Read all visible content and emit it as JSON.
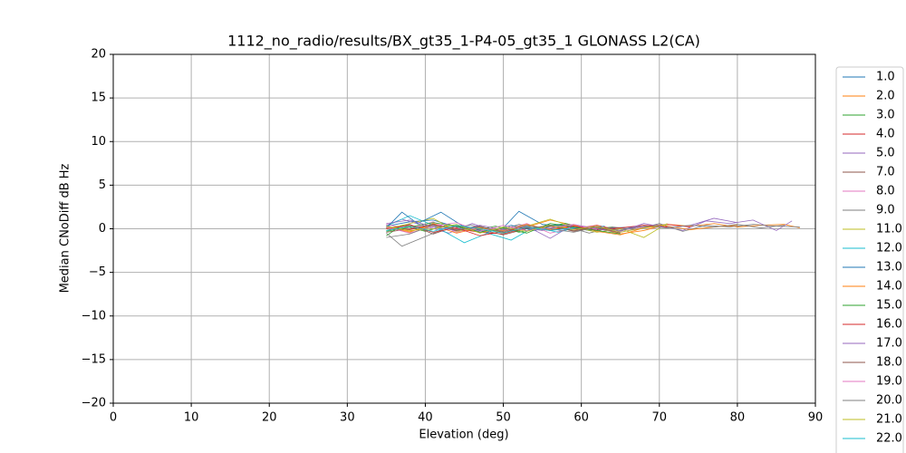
{
  "chart_data": {
    "type": "line",
    "title": "1112_no_radio/results/BX_gt35_1-P4-05_gt35_1 GLONASS L2(CA)",
    "xlabel": "Elevation (deg)",
    "ylabel": "Median CNoDiff dB Hz",
    "xlim": [
      0,
      90
    ],
    "ylim": [
      -20,
      20
    ],
    "xticks": [
      0,
      10,
      20,
      30,
      40,
      50,
      60,
      70,
      80,
      90
    ],
    "yticks": [
      {
        "value": -20,
        "label": "−20"
      },
      {
        "value": -15,
        "label": "−15"
      },
      {
        "value": -10,
        "label": "−10"
      },
      {
        "value": -5,
        "label": "−5"
      },
      0,
      5,
      10,
      15,
      20
    ],
    "grid": true,
    "legend": "outside right",
    "series": [
      {
        "name": "1.0",
        "color": "#1f77b4",
        "x": [
          35,
          38,
          41,
          44,
          47,
          50,
          52,
          55,
          58,
          61,
          64,
          67,
          70
        ],
        "values": [
          0.3,
          0.8,
          1.0,
          0.2,
          -0.3,
          0.1,
          2.0,
          0.5,
          0.3,
          -0.2,
          0.1,
          0.2,
          0.4
        ]
      },
      {
        "name": "2.0",
        "color": "#ff7f0e",
        "x": [
          35,
          38,
          41,
          44,
          47,
          50,
          53,
          56,
          59,
          62,
          65,
          68,
          71,
          74,
          77,
          80,
          83,
          86,
          88
        ],
        "values": [
          0.1,
          -0.4,
          0.6,
          -0.2,
          0.3,
          -0.5,
          0.2,
          1.0,
          0.4,
          0.1,
          -0.6,
          -0.2,
          0.5,
          0.3,
          0.6,
          0.2,
          0.4,
          0.5,
          0.1
        ]
      },
      {
        "name": "3.0",
        "color": "#2ca02c",
        "x": [
          35,
          37,
          40,
          43,
          46,
          49,
          52,
          55,
          58,
          61,
          64
        ],
        "values": [
          -0.8,
          0.4,
          -0.3,
          0.5,
          -0.2,
          0.3,
          -0.4,
          0.2,
          0.6,
          -0.1,
          0.2
        ]
      },
      {
        "name": "4.0",
        "color": "#d62728",
        "x": [
          35,
          38,
          41,
          44,
          47,
          50,
          53,
          56,
          59,
          62,
          65,
          68,
          71,
          74
        ],
        "values": [
          0.2,
          -0.1,
          0.5,
          0.0,
          -0.4,
          -0.6,
          0.1,
          0.3,
          0.0,
          0.4,
          -0.2,
          0.3,
          0.5,
          0.2
        ]
      },
      {
        "name": "5.0",
        "color": "#9467bd",
        "x": [
          35,
          37,
          40,
          43,
          46,
          49,
          52,
          55,
          58,
          61,
          64,
          67,
          70,
          73,
          76,
          79,
          82,
          85,
          87
        ],
        "values": [
          0.4,
          1.1,
          0.3,
          -0.5,
          0.6,
          -0.3,
          0.2,
          -0.2,
          0.5,
          0.1,
          -0.3,
          0.2,
          0.4,
          -0.2,
          0.9,
          0.6,
          1.0,
          -0.2,
          0.9
        ]
      },
      {
        "name": "7.0",
        "color": "#8c564b",
        "x": [
          35,
          38,
          41,
          44,
          47,
          50,
          53,
          56,
          59,
          62
        ],
        "values": [
          -0.2,
          0.5,
          -0.6,
          0.3,
          -0.1,
          -0.7,
          0.0,
          0.4,
          -0.3,
          0.2
        ]
      },
      {
        "name": "8.0",
        "color": "#e377c2",
        "x": [
          35,
          38,
          41,
          44,
          47,
          50,
          53,
          56,
          59,
          62,
          65,
          68
        ],
        "values": [
          0.5,
          0.0,
          0.8,
          -0.4,
          0.2,
          -0.2,
          0.6,
          -0.5,
          0.1,
          0.3,
          -0.4,
          0.2
        ]
      },
      {
        "name": "9.0",
        "color": "#7f7f7f",
        "x": [
          35,
          37,
          40,
          43,
          46,
          49,
          52,
          55,
          58,
          61,
          64,
          67,
          70,
          73,
          76,
          79,
          82,
          85,
          88
        ],
        "values": [
          -0.5,
          -2.0,
          -0.9,
          0.2,
          0.4,
          -0.3,
          0.5,
          -0.1,
          0.3,
          -0.5,
          0.2,
          -0.1,
          0.6,
          -0.3,
          0.4,
          0.2,
          0.5,
          0.3,
          0.2
        ]
      },
      {
        "name": "11.0",
        "color": "#bcbd22",
        "x": [
          35,
          38,
          41,
          44,
          47,
          50,
          53,
          56,
          59,
          62,
          65,
          68,
          71
        ],
        "values": [
          0.0,
          0.6,
          1.2,
          -0.3,
          0.2,
          -0.5,
          0.3,
          1.1,
          0.2,
          -0.4,
          0.0,
          -1.0,
          0.6
        ]
      },
      {
        "name": "12.0",
        "color": "#17becf",
        "x": [
          35,
          38,
          41,
          43,
          45,
          48,
          51,
          54,
          57,
          60
        ],
        "values": [
          0.3,
          1.5,
          0.4,
          -0.6,
          -1.6,
          -0.5,
          -1.3,
          0.2,
          -0.4,
          0.3
        ]
      },
      {
        "name": "13.0",
        "color": "#1f77b4",
        "x": [
          35,
          37,
          39,
          42,
          45,
          48,
          51,
          54,
          57,
          60,
          63
        ],
        "values": [
          0.1,
          1.9,
          0.6,
          1.9,
          0.2,
          -0.4,
          0.4,
          -0.2,
          0.5,
          0.0,
          0.3
        ]
      },
      {
        "name": "14.0",
        "color": "#ff7f0e",
        "x": [
          35,
          38,
          41,
          44,
          47,
          50,
          53,
          56,
          59,
          62,
          65,
          68,
          71,
          74,
          77,
          80
        ],
        "values": [
          0.2,
          -0.3,
          0.4,
          -0.5,
          0.1,
          -0.2,
          0.5,
          -0.1,
          0.4,
          -0.3,
          -0.7,
          0.1,
          0.3,
          -0.1,
          0.2,
          0.4
        ]
      },
      {
        "name": "15.0",
        "color": "#2ca02c",
        "x": [
          35,
          38,
          41,
          44,
          47,
          50,
          53,
          56,
          59,
          62,
          65
        ],
        "values": [
          -0.3,
          0.2,
          0.7,
          0.3,
          -0.4,
          0.1,
          -0.5,
          0.6,
          0.2,
          -0.2,
          -0.6
        ]
      },
      {
        "name": "16.0",
        "color": "#d62728",
        "x": [
          35,
          38,
          41,
          44,
          47,
          50,
          53,
          56,
          59,
          62,
          65,
          68,
          71
        ],
        "values": [
          0.0,
          0.4,
          -0.4,
          0.1,
          -0.8,
          -0.3,
          0.2,
          -0.2,
          0.3,
          -0.1,
          0.1,
          0.4,
          0.2
        ]
      },
      {
        "name": "17.0",
        "color": "#9467bd",
        "x": [
          35,
          38,
          41,
          44,
          47,
          50,
          53,
          56,
          59,
          62,
          65,
          68,
          71,
          74,
          77,
          80
        ],
        "values": [
          0.6,
          1.0,
          0.2,
          -0.2,
          0.4,
          -0.1,
          0.3,
          -1.1,
          0.5,
          0.0,
          -0.3,
          0.6,
          0.1,
          0.4,
          1.2,
          0.7
        ]
      },
      {
        "name": "18.0",
        "color": "#8c564b",
        "x": [
          35,
          38,
          41,
          44,
          47,
          50,
          53,
          56,
          59,
          62,
          65
        ],
        "values": [
          -0.4,
          0.0,
          0.5,
          -0.2,
          0.3,
          -0.4,
          0.1,
          0.3,
          -0.2,
          0.2,
          -0.5
        ]
      },
      {
        "name": "19.0",
        "color": "#e377c2",
        "x": [
          35,
          38,
          41,
          44,
          47,
          50,
          53,
          56,
          59,
          62
        ],
        "values": [
          0.2,
          -0.5,
          0.3,
          0.7,
          -0.3,
          0.4,
          -0.2,
          0.1,
          0.5,
          -0.1
        ]
      },
      {
        "name": "20.0",
        "color": "#7f7f7f",
        "x": [
          35,
          38,
          41,
          44,
          47,
          50,
          53,
          56,
          59,
          62,
          65,
          68,
          71,
          74,
          77,
          80,
          83,
          86
        ],
        "values": [
          -1.0,
          -0.6,
          0.4,
          -0.1,
          0.2,
          -0.3,
          0.4,
          0.0,
          -0.4,
          0.2,
          -0.2,
          0.3,
          0.1,
          0.4,
          0.2,
          0.5,
          0.1,
          0.4
        ]
      },
      {
        "name": "21.0",
        "color": "#bcbd22",
        "x": [
          35,
          38,
          41,
          44,
          47,
          50,
          53,
          56,
          59,
          62,
          65,
          68,
          71
        ],
        "values": [
          0.3,
          -0.2,
          0.0,
          0.5,
          -0.5,
          0.2,
          -0.3,
          0.4,
          -0.1,
          0.3,
          -0.4,
          0.1,
          0.5
        ]
      },
      {
        "name": "22.0",
        "color": "#17becf",
        "x": [
          35,
          38,
          41,
          44,
          47,
          50,
          53,
          56,
          59
        ],
        "values": [
          -0.2,
          0.3,
          -0.3,
          0.4,
          0.0,
          -0.5,
          0.2,
          -0.2,
          0.1
        ]
      }
    ]
  }
}
